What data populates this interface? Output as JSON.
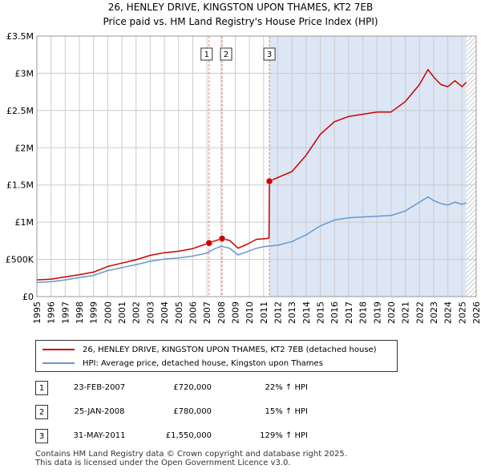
{
  "title_line1": "26, HENLEY DRIVE, KINGSTON UPON THAMES, KT2 7EB",
  "title_line2": "Price paid vs. HM Land Registry's House Price Index (HPI)",
  "colors": {
    "property": "#cc0000",
    "hpi": "#6699cc",
    "shade": "#dce6f5",
    "grid": "#cccccc",
    "marker_line": "#e08080"
  },
  "chart_data": {
    "type": "line",
    "title": "26, HENLEY DRIVE, KINGSTON UPON THAMES, KT2 7EB",
    "subtitle": "Price paid vs. HM Land Registry's House Price Index (HPI)",
    "xlabel": "",
    "ylabel": "",
    "xlim": [
      1995,
      2026
    ],
    "ylim": [
      0,
      3500000
    ],
    "x_ticks": [
      1995,
      1996,
      1997,
      1998,
      1999,
      2000,
      2001,
      2002,
      2003,
      2004,
      2005,
      2006,
      2007,
      2008,
      2009,
      2010,
      2011,
      2012,
      2013,
      2014,
      2015,
      2016,
      2017,
      2018,
      2019,
      2020,
      2021,
      2022,
      2023,
      2024,
      2025,
      2026
    ],
    "y_ticks": [
      {
        "value": 0,
        "label": "£0"
      },
      {
        "value": 500000,
        "label": "£500K"
      },
      {
        "value": 1000000,
        "label": "£1M"
      },
      {
        "value": 1500000,
        "label": "£1.5M"
      },
      {
        "value": 2000000,
        "label": "£2M"
      },
      {
        "value": 2500000,
        "label": "£2.5M"
      },
      {
        "value": 3000000,
        "label": "£3M"
      },
      {
        "value": 3500000,
        "label": "£3.5M"
      }
    ],
    "grid": true,
    "shaded_region": [
      2011.41,
      2025.3
    ],
    "hatched_region": [
      2025.3,
      2026
    ],
    "series": [
      {
        "name": "26, HENLEY DRIVE, KINGSTON UPON THAMES, KT2 7EB (detached house)",
        "color": "#cc0000",
        "points": [
          [
            1995.0,
            225000
          ],
          [
            1996.0,
            235000
          ],
          [
            1997.0,
            265000
          ],
          [
            1998.0,
            295000
          ],
          [
            1999.0,
            330000
          ],
          [
            2000.0,
            405000
          ],
          [
            2001.0,
            450000
          ],
          [
            2002.0,
            495000
          ],
          [
            2003.0,
            555000
          ],
          [
            2004.0,
            590000
          ],
          [
            2005.0,
            610000
          ],
          [
            2006.0,
            645000
          ],
          [
            2007.15,
            720000
          ],
          [
            2007.5,
            745000
          ],
          [
            2008.07,
            780000
          ],
          [
            2008.6,
            755000
          ],
          [
            2009.2,
            650000
          ],
          [
            2009.8,
            700000
          ],
          [
            2010.5,
            770000
          ],
          [
            2011.2,
            780000
          ],
          [
            2011.38,
            790000
          ],
          [
            2011.41,
            1550000
          ],
          [
            2012.0,
            1600000
          ],
          [
            2013.0,
            1680000
          ],
          [
            2014.0,
            1900000
          ],
          [
            2015.0,
            2180000
          ],
          [
            2016.0,
            2350000
          ],
          [
            2017.0,
            2420000
          ],
          [
            2018.0,
            2450000
          ],
          [
            2019.0,
            2480000
          ],
          [
            2020.0,
            2480000
          ],
          [
            2021.0,
            2620000
          ],
          [
            2022.0,
            2850000
          ],
          [
            2022.6,
            3050000
          ],
          [
            2023.0,
            2950000
          ],
          [
            2023.5,
            2850000
          ],
          [
            2024.0,
            2820000
          ],
          [
            2024.5,
            2900000
          ],
          [
            2025.0,
            2820000
          ],
          [
            2025.3,
            2880000
          ]
        ]
      },
      {
        "name": "HPI: Average price, detached house, Kingston upon Thames",
        "color": "#6699cc",
        "points": [
          [
            1995.0,
            190000
          ],
          [
            1996.0,
            200000
          ],
          [
            1997.0,
            225000
          ],
          [
            1998.0,
            255000
          ],
          [
            1999.0,
            285000
          ],
          [
            2000.0,
            350000
          ],
          [
            2001.0,
            390000
          ],
          [
            2002.0,
            430000
          ],
          [
            2003.0,
            475000
          ],
          [
            2004.0,
            505000
          ],
          [
            2005.0,
            520000
          ],
          [
            2006.0,
            545000
          ],
          [
            2007.0,
            585000
          ],
          [
            2007.5,
            640000
          ],
          [
            2008.0,
            675000
          ],
          [
            2008.6,
            650000
          ],
          [
            2009.2,
            560000
          ],
          [
            2009.8,
            600000
          ],
          [
            2010.5,
            650000
          ],
          [
            2011.0,
            670000
          ],
          [
            2012.0,
            690000
          ],
          [
            2013.0,
            740000
          ],
          [
            2014.0,
            830000
          ],
          [
            2015.0,
            950000
          ],
          [
            2016.0,
            1030000
          ],
          [
            2017.0,
            1060000
          ],
          [
            2018.0,
            1070000
          ],
          [
            2019.0,
            1080000
          ],
          [
            2020.0,
            1090000
          ],
          [
            2021.0,
            1150000
          ],
          [
            2022.0,
            1270000
          ],
          [
            2022.6,
            1340000
          ],
          [
            2023.0,
            1290000
          ],
          [
            2023.5,
            1250000
          ],
          [
            2024.0,
            1230000
          ],
          [
            2024.5,
            1270000
          ],
          [
            2025.0,
            1240000
          ],
          [
            2025.3,
            1260000
          ]
        ]
      }
    ],
    "annotations": [
      {
        "label": "1",
        "x": 2007.15,
        "y": 720000
      },
      {
        "label": "2",
        "x": 2008.07,
        "y": 780000
      },
      {
        "label": "3",
        "x": 2011.41,
        "y": 1550000
      }
    ]
  },
  "legend": {
    "items": [
      {
        "label": "26, HENLEY DRIVE, KINGSTON UPON THAMES, KT2 7EB (detached house)"
      },
      {
        "label": "HPI: Average price, detached house, Kingston upon Thames"
      }
    ]
  },
  "sales": [
    {
      "num": "1",
      "date": "23-FEB-2007",
      "price": "£720,000",
      "hpi": "22% ↑ HPI"
    },
    {
      "num": "2",
      "date": "25-JAN-2008",
      "price": "£780,000",
      "hpi": "15% ↑ HPI"
    },
    {
      "num": "3",
      "date": "31-MAY-2011",
      "price": "£1,550,000",
      "hpi": "129% ↑ HPI"
    }
  ],
  "footer": {
    "line1": "Contains HM Land Registry data © Crown copyright and database right 2025.",
    "line2": "This data is licensed under the Open Government Licence v3.0."
  }
}
